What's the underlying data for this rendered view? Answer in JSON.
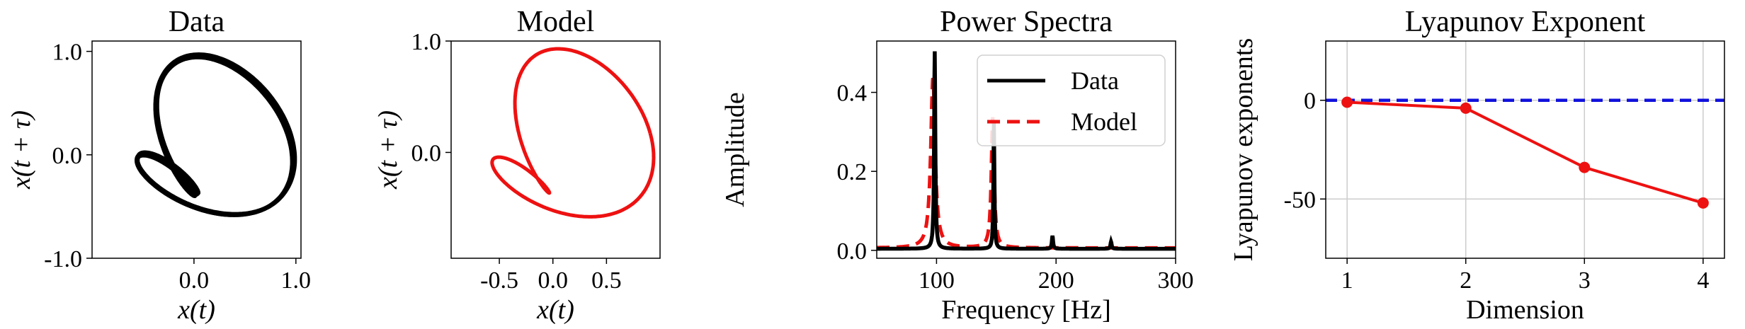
{
  "chart_data": [
    {
      "type": "scatter",
      "title": "Data",
      "xlabel": "x(t)",
      "ylabel": "x(t + τ)",
      "xlim": [
        -1.0,
        1.05
      ],
      "ylim": [
        -1.0,
        1.1
      ],
      "xticks": [
        "0.0",
        "1.0"
      ],
      "xtick_values": [
        0.0,
        1.0
      ],
      "yticks": [
        "-1.0",
        "0.0",
        "1.0"
      ],
      "ytick_values": [
        -1.0,
        0.0,
        1.0
      ],
      "grid": false,
      "series_color": "#000000",
      "trajectory": "delay-embedded phase portrait, multiple overlapping loops; outer loop spans x from about -0.85 to 1.0, inner heart-shaped lobe near (0.1, 0.2)",
      "loop_count": 7
    },
    {
      "type": "scatter",
      "title": "Model",
      "xlabel": "x(t)",
      "ylabel": "x(t + τ)",
      "xlim": [
        -0.95,
        1.0
      ],
      "ylim": [
        -0.95,
        1.0
      ],
      "xticks": [
        "-0.5",
        "0.0",
        "0.5"
      ],
      "xtick_values": [
        -0.5,
        0.0,
        0.5
      ],
      "yticks": [
        "0.0",
        "1.0"
      ],
      "ytick_values": [
        0.0,
        1.0
      ],
      "grid": false,
      "series_color": "#ee1111",
      "trajectory": "single closed limit cycle with an inner lobe and cusp near (0.25, 0.45)"
    },
    {
      "type": "line",
      "title": "Power Spectra",
      "xlabel": "Frequency [Hz]",
      "ylabel": "Amplitude",
      "xlim": [
        50,
        300
      ],
      "ylim": [
        -0.02,
        0.53
      ],
      "xticks": [
        "100",
        "200",
        "300"
      ],
      "xtick_values": [
        100,
        200,
        300
      ],
      "yticks": [
        "0.0",
        "0.2",
        "0.4"
      ],
      "ytick_values": [
        0.0,
        0.2,
        0.4
      ],
      "grid": false,
      "legend_position": "top-right",
      "series": [
        {
          "name": "Data",
          "color": "#000000",
          "style": "solid",
          "baseline": 0.004,
          "peaks": [
            {
              "x": 98.5,
              "y": 0.5,
              "width": 0.6
            },
            {
              "x": 148,
              "y": 0.32,
              "width": 0.5
            },
            {
              "x": 197,
              "y": 0.033,
              "width": 0.6
            },
            {
              "x": 246,
              "y": 0.018,
              "width": 0.6
            }
          ]
        },
        {
          "name": "Model",
          "color": "#ee1111",
          "style": "dashed",
          "baseline": 0.006,
          "peaks": [
            {
              "x": 97,
              "y": 0.43,
              "width": 2.2
            },
            {
              "x": 147,
              "y": 0.33,
              "width": 1.4
            }
          ]
        }
      ]
    },
    {
      "type": "line",
      "title": "Lyapunov Exponent",
      "xlabel": "Dimension",
      "ylabel": "Lyapunov exponents",
      "x": [
        1,
        2,
        3,
        4
      ],
      "values": [
        -1,
        -4,
        -34,
        -52
      ],
      "xlim": [
        0.82,
        4.18
      ],
      "ylim": [
        -80,
        30
      ],
      "xticks": [
        "1",
        "2",
        "3",
        "4"
      ],
      "xtick_values": [
        1,
        2,
        3,
        4
      ],
      "yticks": [
        "-50",
        "0"
      ],
      "ytick_values": [
        -50,
        0
      ],
      "grid": true,
      "series_color": "#ee1111",
      "reference_line": {
        "y": 0,
        "color": "#1111dd",
        "style": "dashed"
      }
    }
  ]
}
